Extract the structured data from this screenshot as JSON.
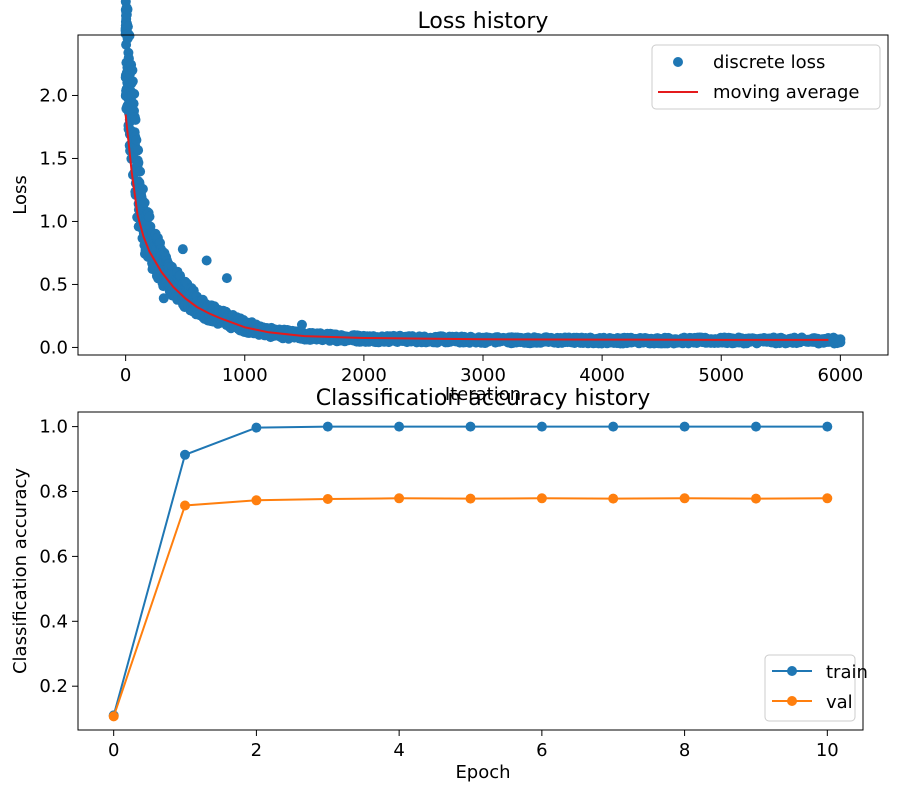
{
  "chart_data": [
    {
      "type": "scatter",
      "title": "Loss history",
      "xlabel": "Iteration",
      "ylabel": "Loss",
      "xlim": [
        -400,
        6400
      ],
      "ylim": [
        -0.06,
        2.48
      ],
      "xticks": [
        0,
        1000,
        2000,
        3000,
        4000,
        5000,
        6000
      ],
      "xtick_labels": [
        "0",
        "1000",
        "2000",
        "3000",
        "4000",
        "5000",
        "6000"
      ],
      "yticks": [
        0.0,
        0.5,
        1.0,
        1.5,
        2.0
      ],
      "ytick_labels": [
        "0.0",
        "0.5",
        "1.0",
        "1.5",
        "2.0"
      ],
      "grid": false,
      "legend_position": "top-right",
      "series": [
        {
          "name": "discrete loss",
          "style": "markers",
          "color": "#1f77b4",
          "x_range": [
            0,
            6000
          ],
          "approx_curve": {
            "iteration": [
              0,
              50,
              100,
              150,
              200,
              300,
              400,
              500,
              600,
              700,
              800,
              1000,
              1200,
              1500,
              2000,
              3000,
              4000,
              5000,
              6000
            ],
            "loss": [
              2.35,
              1.9,
              1.3,
              1.0,
              0.85,
              0.65,
              0.52,
              0.42,
              0.34,
              0.28,
              0.24,
              0.17,
              0.12,
              0.09,
              0.07,
              0.06,
              0.055,
              0.055,
              0.055
            ]
          },
          "outliers": [
            {
              "x": 320,
              "y": 0.39
            },
            {
              "x": 480,
              "y": 0.78
            },
            {
              "x": 680,
              "y": 0.69
            },
            {
              "x": 850,
              "y": 0.55
            },
            {
              "x": 1480,
              "y": 0.18
            }
          ]
        },
        {
          "name": "moving average",
          "style": "line",
          "color": "#e41a1c",
          "x": [
            0,
            50,
            100,
            150,
            200,
            300,
            400,
            500,
            600,
            700,
            800,
            1000,
            1200,
            1500,
            2000,
            2500,
            3000,
            4000,
            5000,
            5900
          ],
          "y": [
            1.85,
            1.4,
            1.05,
            0.88,
            0.76,
            0.6,
            0.48,
            0.39,
            0.32,
            0.27,
            0.23,
            0.16,
            0.12,
            0.09,
            0.075,
            0.07,
            0.065,
            0.062,
            0.06,
            0.06
          ]
        }
      ]
    },
    {
      "type": "line",
      "title": "Classification accuracy history",
      "xlabel": "Epoch",
      "ylabel": "Classification accuracy",
      "xlim": [
        -0.5,
        10.5
      ],
      "ylim": [
        0.065,
        1.045
      ],
      "xticks": [
        0,
        2,
        4,
        6,
        8,
        10
      ],
      "xtick_labels": [
        "0",
        "2",
        "4",
        "6",
        "8",
        "10"
      ],
      "yticks": [
        0.2,
        0.4,
        0.6,
        0.8,
        1.0
      ],
      "ytick_labels": [
        "0.2",
        "0.4",
        "0.6",
        "0.8",
        "1.0"
      ],
      "grid": false,
      "legend_position": "bottom-right",
      "x": [
        0,
        1,
        2,
        3,
        4,
        5,
        6,
        7,
        8,
        9,
        10
      ],
      "series": [
        {
          "name": "train",
          "color": "#1f77b4",
          "values": [
            0.11,
            0.913,
            0.997,
            1.0,
            1.0,
            1.0,
            1.0,
            1.0,
            1.0,
            1.0,
            1.0
          ]
        },
        {
          "name": "val",
          "color": "#ff7f0e",
          "values": [
            0.107,
            0.757,
            0.773,
            0.777,
            0.779,
            0.778,
            0.779,
            0.778,
            0.779,
            0.778,
            0.779
          ]
        }
      ]
    }
  ]
}
